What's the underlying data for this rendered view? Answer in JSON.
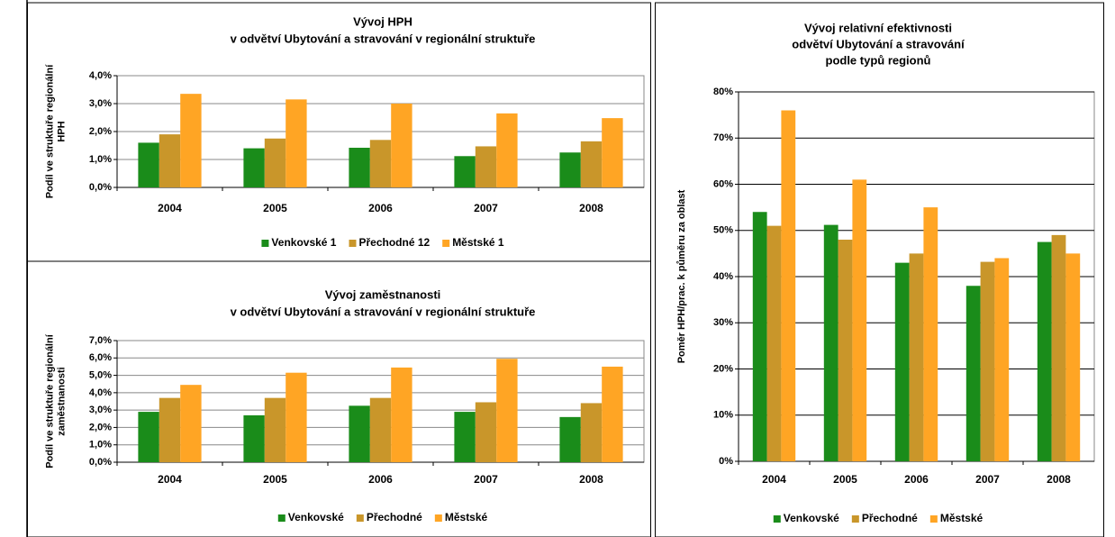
{
  "chart_data": [
    {
      "type": "bar",
      "title": [
        "Vývoj  HPH",
        "v odvětví Ubytování a stravování v regionální struktuře"
      ],
      "ylabel": [
        "Podíl ve struktuře regionální",
        "HPH"
      ],
      "categories": [
        "2004",
        "2005",
        "2006",
        "2007",
        "2008"
      ],
      "series": [
        {
          "name": "Venkovské 1",
          "color": "#1a8c1a",
          "values": [
            1.6,
            1.4,
            1.42,
            1.12,
            1.25
          ]
        },
        {
          "name": "Přechodné 12",
          "color": "#c9962a",
          "values": [
            1.9,
            1.75,
            1.7,
            1.47,
            1.65
          ]
        },
        {
          "name": "Městské 1",
          "color": "#ffa524",
          "values": [
            3.35,
            3.15,
            3.0,
            2.65,
            2.48
          ]
        }
      ],
      "ylim": [
        0,
        4
      ],
      "yticks": [
        {
          "value": 0,
          "label": "0,0%"
        },
        {
          "value": 1,
          "label": "1,0%"
        },
        {
          "value": 2,
          "label": "2,0%"
        },
        {
          "value": 3,
          "label": "3,0%"
        },
        {
          "value": 4,
          "label": "4,0%"
        }
      ],
      "grid": true,
      "legend": "bottom"
    },
    {
      "type": "bar",
      "title": [
        "Vývoj zaměstnanosti",
        "v odvětví Ubytování a stravování v regionální struktuře"
      ],
      "ylabel": [
        "Podíl ve struktuře regionální",
        "zaměstnanosti"
      ],
      "categories": [
        "2004",
        "2005",
        "2006",
        "2007",
        "2008"
      ],
      "series": [
        {
          "name": "Venkovské",
          "color": "#1a8c1a",
          "values": [
            2.9,
            2.7,
            3.25,
            2.9,
            2.6
          ]
        },
        {
          "name": "Přechodné",
          "color": "#c9962a",
          "values": [
            3.7,
            3.7,
            3.7,
            3.45,
            3.4
          ]
        },
        {
          "name": "Městské",
          "color": "#ffa524",
          "values": [
            4.45,
            5.15,
            5.45,
            5.95,
            5.5
          ]
        }
      ],
      "ylim": [
        0,
        7
      ],
      "yticks": [
        {
          "value": 0,
          "label": "0,0%"
        },
        {
          "value": 1,
          "label": "1,0%"
        },
        {
          "value": 2,
          "label": "2,0%"
        },
        {
          "value": 3,
          "label": "3,0%"
        },
        {
          "value": 4,
          "label": "4,0%"
        },
        {
          "value": 5,
          "label": "5,0%"
        },
        {
          "value": 6,
          "label": "6,0%"
        },
        {
          "value": 7,
          "label": "7,0%"
        }
      ],
      "grid": true,
      "legend": "bottom"
    },
    {
      "type": "bar",
      "title": [
        "Vývoj relativní efektivnosti",
        "odvětví Ubytování a stravování",
        "podle typů regionů"
      ],
      "ylabel": [
        "Poměr HPH/prac. k půměru za oblast"
      ],
      "categories": [
        "2004",
        "2005",
        "2006",
        "2007",
        "2008"
      ],
      "series": [
        {
          "name": "Venkovské",
          "color": "#1a8c1a",
          "values": [
            54,
            51.2,
            43,
            38,
            47.5
          ]
        },
        {
          "name": "Přechodné",
          "color": "#c9962a",
          "values": [
            51,
            48,
            45,
            43.2,
            49
          ]
        },
        {
          "name": "Městské",
          "color": "#ffa524",
          "values": [
            76,
            61,
            55,
            44,
            45
          ]
        }
      ],
      "ylim": [
        0,
        80
      ],
      "yticks": [
        {
          "value": 0,
          "label": "0%"
        },
        {
          "value": 10,
          "label": "10%"
        },
        {
          "value": 20,
          "label": "20%"
        },
        {
          "value": 30,
          "label": "30%"
        },
        {
          "value": 40,
          "label": "40%"
        },
        {
          "value": 50,
          "label": "50%"
        },
        {
          "value": 60,
          "label": "60%"
        },
        {
          "value": 70,
          "label": "70%"
        },
        {
          "value": 80,
          "label": "80%"
        }
      ],
      "grid": true,
      "legend": "bottom"
    }
  ]
}
